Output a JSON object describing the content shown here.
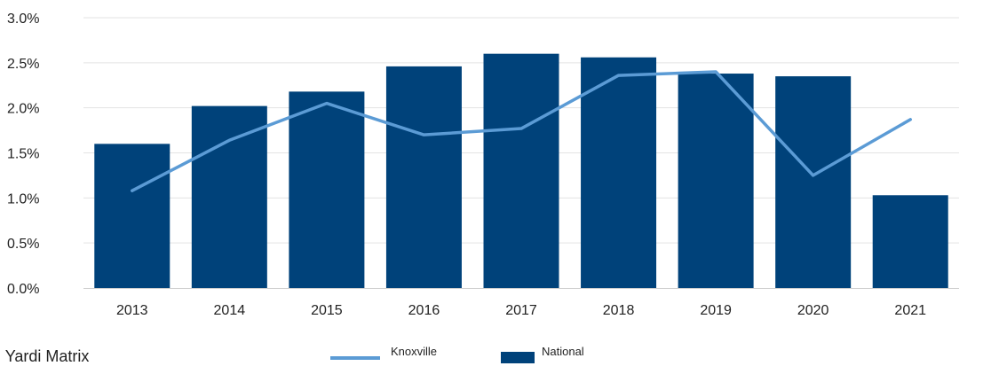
{
  "chart_data": {
    "type": "bar",
    "categories": [
      "2013",
      "2014",
      "2015",
      "2016",
      "2017",
      "2018",
      "2019",
      "2020",
      "2021"
    ],
    "series": [
      {
        "name": "National",
        "type": "bar",
        "values": [
          1.6,
          2.02,
          2.18,
          2.46,
          2.6,
          2.56,
          2.38,
          2.35,
          1.03
        ]
      },
      {
        "name": "Knoxville",
        "type": "line",
        "values": [
          1.08,
          1.64,
          2.05,
          1.7,
          1.77,
          2.36,
          2.4,
          1.25,
          1.87
        ]
      }
    ],
    "ylim": [
      0,
      3
    ],
    "yticks": [
      "0.0%",
      "0.5%",
      "1.0%",
      "1.5%",
      "2.0%",
      "2.5%",
      "3.0%"
    ],
    "grid": true,
    "legend": "bottom-center",
    "colors": {
      "National": "#00427a",
      "Knoxville": "#5b9bd5"
    }
  },
  "source_text": "e: Yardi Matrix"
}
